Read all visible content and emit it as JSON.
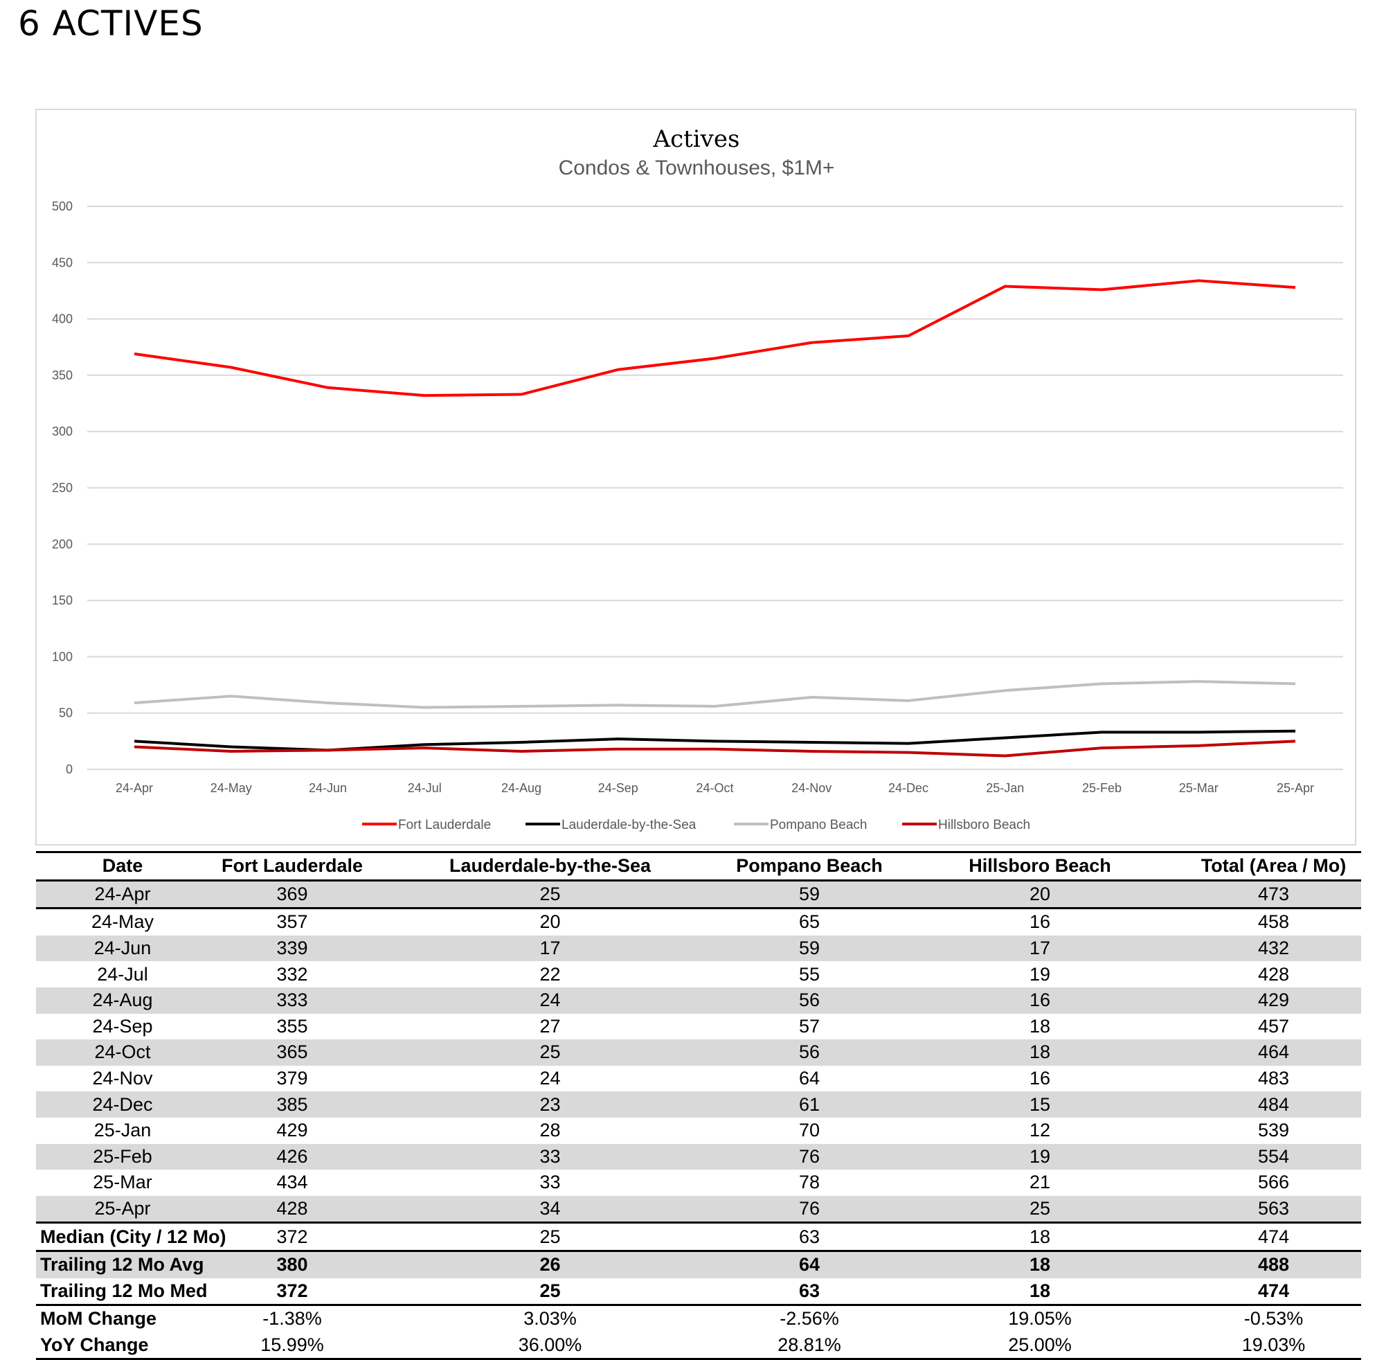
{
  "heading": "6 ACTIVES",
  "chart_data": {
    "type": "line",
    "title": "Actives",
    "subtitle": "Condos & Townhouses, $1M+",
    "categories": [
      "24-Apr",
      "24-May",
      "24-Jun",
      "24-Jul",
      "24-Aug",
      "24-Sep",
      "24-Oct",
      "24-Nov",
      "24-Dec",
      "25-Jan",
      "25-Feb",
      "25-Mar",
      "25-Apr"
    ],
    "y_ticks": [
      0,
      50,
      100,
      150,
      200,
      250,
      300,
      350,
      400,
      450,
      500
    ],
    "ylim": [
      0,
      500
    ],
    "grid": true,
    "legend_position": "bottom",
    "series": [
      {
        "name": "Fort Lauderdale",
        "color": "#ff0000",
        "values": [
          369,
          357,
          339,
          332,
          333,
          355,
          365,
          379,
          385,
          429,
          426,
          434,
          428
        ]
      },
      {
        "name": "Lauderdale-by-the-Sea",
        "color": "#000000",
        "values": [
          25,
          20,
          17,
          22,
          24,
          27,
          25,
          24,
          23,
          28,
          33,
          33,
          34
        ]
      },
      {
        "name": "Pompano Beach",
        "color": "#bfbfbf",
        "values": [
          59,
          65,
          59,
          55,
          56,
          57,
          56,
          64,
          61,
          70,
          76,
          78,
          76
        ]
      },
      {
        "name": "Hillsboro Beach",
        "color": "#c00000",
        "values": [
          20,
          16,
          17,
          19,
          16,
          18,
          18,
          16,
          15,
          12,
          19,
          21,
          25
        ]
      }
    ]
  },
  "table": {
    "headers": [
      "Date",
      "Fort Lauderdale",
      "Lauderdale-by-the-Sea",
      "Pompano Beach",
      "Hillsboro Beach",
      "Total (Area / Mo)"
    ],
    "rows": [
      [
        "24-Apr",
        "369",
        "25",
        "59",
        "20",
        "473"
      ],
      [
        "24-May",
        "357",
        "20",
        "65",
        "16",
        "458"
      ],
      [
        "24-Jun",
        "339",
        "17",
        "59",
        "17",
        "432"
      ],
      [
        "24-Jul",
        "332",
        "22",
        "55",
        "19",
        "428"
      ],
      [
        "24-Aug",
        "333",
        "24",
        "56",
        "16",
        "429"
      ],
      [
        "24-Sep",
        "355",
        "27",
        "57",
        "18",
        "457"
      ],
      [
        "24-Oct",
        "365",
        "25",
        "56",
        "18",
        "464"
      ],
      [
        "24-Nov",
        "379",
        "24",
        "64",
        "16",
        "483"
      ],
      [
        "24-Dec",
        "385",
        "23",
        "61",
        "15",
        "484"
      ],
      [
        "25-Jan",
        "429",
        "28",
        "70",
        "12",
        "539"
      ],
      [
        "25-Feb",
        "426",
        "33",
        "76",
        "19",
        "554"
      ],
      [
        "25-Mar",
        "434",
        "33",
        "78",
        "21",
        "566"
      ],
      [
        "25-Apr",
        "428",
        "34",
        "76",
        "25",
        "563"
      ]
    ],
    "summary": [
      [
        "Median (City / 12 Mo)",
        "372",
        "25",
        "63",
        "18",
        "474"
      ],
      [
        "Trailing 12 Mo Avg",
        "380",
        "26",
        "64",
        "18",
        "488"
      ],
      [
        "Trailing 12 Mo Med",
        "372",
        "25",
        "63",
        "18",
        "474"
      ],
      [
        "MoM Change",
        "-1.38%",
        "3.03%",
        "-2.56%",
        "19.05%",
        "-0.53%"
      ],
      [
        "YoY Change",
        "15.99%",
        "36.00%",
        "28.81%",
        "25.00%",
        "19.03%"
      ]
    ]
  }
}
